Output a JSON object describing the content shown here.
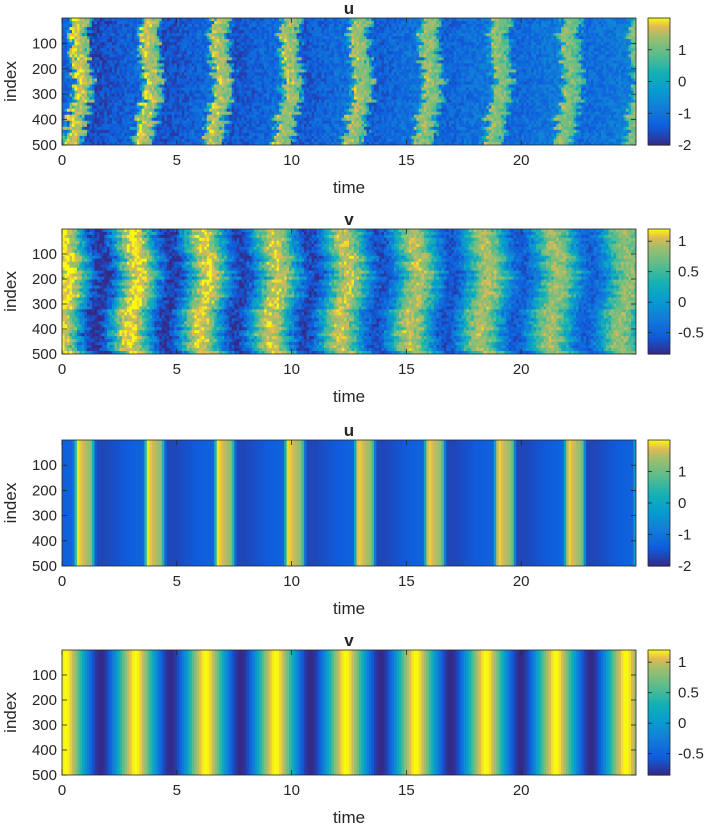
{
  "chart_data": [
    {
      "type": "heatmap",
      "title": "u",
      "xlabel": "time",
      "ylabel": "index",
      "xlim": [
        0,
        25
      ],
      "ylim": [
        0,
        500
      ],
      "xticks": [
        0,
        5,
        10,
        15,
        20
      ],
      "yticks": [
        100,
        200,
        300,
        400,
        500
      ],
      "colorbar": {
        "ticks": [
          1,
          0,
          -1,
          -2
        ],
        "range": [
          -2,
          2
        ]
      },
      "colormap": "parula",
      "pattern": "noisy-phase-waves",
      "period": 3.05,
      "phase": 1.25,
      "value_range": [
        -2,
        2
      ]
    },
    {
      "type": "heatmap",
      "title": "v",
      "xlabel": "time",
      "ylabel": "index",
      "xlim": [
        0,
        25
      ],
      "ylim": [
        0,
        500
      ],
      "xticks": [
        0,
        5,
        10,
        15,
        20
      ],
      "yticks": [
        100,
        200,
        300,
        400,
        500
      ],
      "colorbar": {
        "ticks": [
          1,
          0.5,
          0,
          -0.5
        ],
        "range": [
          -0.85,
          1.2
        ]
      },
      "colormap": "parula",
      "pattern": "noisy-phase-waves",
      "period": 3.05,
      "phase": 0.5,
      "value_range": [
        -0.85,
        1.2
      ]
    },
    {
      "type": "heatmap",
      "title": "u",
      "xlabel": "time",
      "ylabel": "index",
      "xlim": [
        0,
        25
      ],
      "ylim": [
        0,
        500
      ],
      "xticks": [
        0,
        5,
        10,
        15,
        20
      ],
      "yticks": [
        100,
        200,
        300,
        400,
        500
      ],
      "colorbar": {
        "ticks": [
          1,
          0,
          -1,
          -2
        ],
        "range": [
          -2,
          2
        ]
      },
      "colormap": "parula",
      "pattern": "synchronized-relaxation-oscillation",
      "period": 3.05,
      "phase": 1.2,
      "value_range": [
        -2,
        2
      ]
    },
    {
      "type": "heatmap",
      "title": "v",
      "xlabel": "time",
      "ylabel": "index",
      "xlim": [
        0,
        25
      ],
      "ylim": [
        0,
        500
      ],
      "xticks": [
        0,
        5,
        10,
        15,
        20
      ],
      "yticks": [
        100,
        200,
        300,
        400,
        500
      ],
      "colorbar": {
        "ticks": [
          1,
          0.5,
          0,
          -0.5
        ],
        "range": [
          -0.85,
          1.2
        ]
      },
      "colormap": "parula",
      "pattern": "synchronized-smooth-oscillation",
      "period": 3.05,
      "phase": 0.6,
      "value_range": [
        -0.85,
        1.2
      ]
    }
  ]
}
